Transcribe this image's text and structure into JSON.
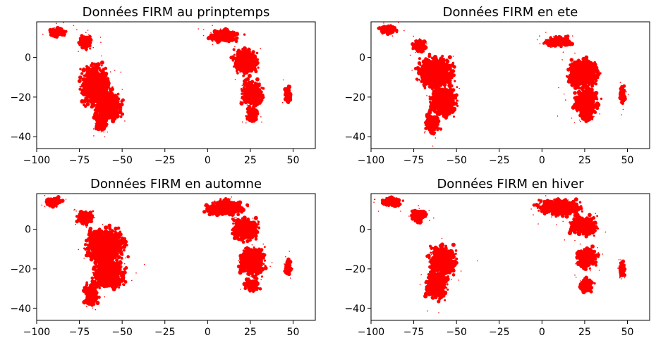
{
  "chart_data": [
    {
      "type": "scatter",
      "title": "Données FIRM au prinptemps",
      "xlabel": "",
      "ylabel": "",
      "xlim": [
        -100,
        63
      ],
      "ylim": [
        -46,
        18
      ],
      "xticks": [
        -100,
        -75,
        -50,
        -25,
        0,
        25,
        50
      ],
      "yticks": [
        -40,
        -20,
        0
      ],
      "marker_color": "#ff0000",
      "regions": [
        {
          "name": "",
          "cx": -66,
          "cy": -14,
          "rx": 10,
          "ry": 13,
          "density": 1.0
        },
        {
          "name": "",
          "cx": -58,
          "cy": -24,
          "rx": 9,
          "ry": 10,
          "density": 0.9
        },
        {
          "name": "",
          "cx": -62,
          "cy": -32,
          "rx": 5,
          "ry": 6,
          "density": 0.6
        },
        {
          "name": "",
          "cx": -72,
          "cy": 8,
          "rx": 5,
          "ry": 4,
          "density": 0.7
        },
        {
          "name": "",
          "cx": -88,
          "cy": 13,
          "rx": 6,
          "ry": 3,
          "density": 0.6
        },
        {
          "name": "",
          "cx": 10,
          "cy": 11,
          "rx": 12,
          "ry": 4,
          "density": 0.6
        },
        {
          "name": "",
          "cx": 22,
          "cy": -2,
          "rx": 9,
          "ry": 8,
          "density": 1.0
        },
        {
          "name": "",
          "cx": 26,
          "cy": -18,
          "rx": 8,
          "ry": 8,
          "density": 0.8
        },
        {
          "name": "",
          "cx": 26,
          "cy": -29,
          "rx": 4,
          "ry": 4,
          "density": 0.6
        },
        {
          "name": "",
          "cx": 47,
          "cy": -19,
          "rx": 2,
          "ry": 5,
          "density": 0.8
        }
      ]
    },
    {
      "type": "scatter",
      "title": "Données FIRM en ete",
      "xlabel": "",
      "ylabel": "",
      "xlim": [
        -100,
        63
      ],
      "ylim": [
        -46,
        18
      ],
      "xticks": [
        -100,
        -75,
        -50,
        -25,
        0,
        25,
        50
      ],
      "yticks": [
        -40,
        -20,
        0
      ],
      "marker_color": "#ff0000",
      "regions": [
        {
          "name": "",
          "cx": -62,
          "cy": -8,
          "rx": 13,
          "ry": 10,
          "density": 1.0
        },
        {
          "name": "",
          "cx": -58,
          "cy": -22,
          "rx": 10,
          "ry": 9,
          "density": 1.0
        },
        {
          "name": "",
          "cx": -64,
          "cy": -33,
          "rx": 5,
          "ry": 6,
          "density": 0.8
        },
        {
          "name": "",
          "cx": -72,
          "cy": 6,
          "rx": 5,
          "ry": 4,
          "density": 0.7
        },
        {
          "name": "",
          "cx": -90,
          "cy": 14,
          "rx": 6,
          "ry": 3,
          "density": 0.6
        },
        {
          "name": "",
          "cx": 10,
          "cy": 8,
          "rx": 10,
          "ry": 3,
          "density": 0.5
        },
        {
          "name": "",
          "cx": 24,
          "cy": -8,
          "rx": 11,
          "ry": 9,
          "density": 1.0
        },
        {
          "name": "",
          "cx": 26,
          "cy": -22,
          "rx": 9,
          "ry": 8,
          "density": 0.9
        },
        {
          "name": "",
          "cx": 26,
          "cy": -30,
          "rx": 4,
          "ry": 3,
          "density": 0.6
        },
        {
          "name": "",
          "cx": 47,
          "cy": -19,
          "rx": 2,
          "ry": 5,
          "density": 0.8
        }
      ]
    },
    {
      "type": "scatter",
      "title": "Données FIRM en automne",
      "xlabel": "",
      "ylabel": "",
      "xlim": [
        -100,
        63
      ],
      "ylim": [
        -46,
        18
      ],
      "xticks": [
        -100,
        -75,
        -50,
        -25,
        0,
        25,
        50
      ],
      "yticks": [
        -40,
        -20,
        0
      ],
      "marker_color": "#ff0000",
      "regions": [
        {
          "name": "",
          "cx": -60,
          "cy": -8,
          "rx": 14,
          "ry": 11,
          "density": 1.0
        },
        {
          "name": "",
          "cx": -58,
          "cy": -22,
          "rx": 11,
          "ry": 10,
          "density": 1.0
        },
        {
          "name": "",
          "cx": -68,
          "cy": -33,
          "rx": 5,
          "ry": 7,
          "density": 0.7
        },
        {
          "name": "",
          "cx": -72,
          "cy": 6,
          "rx": 6,
          "ry": 4,
          "density": 0.7
        },
        {
          "name": "",
          "cx": -90,
          "cy": 14,
          "rx": 6,
          "ry": 3,
          "density": 0.6
        },
        {
          "name": "",
          "cx": 10,
          "cy": 11,
          "rx": 14,
          "ry": 5,
          "density": 0.9
        },
        {
          "name": "",
          "cx": 22,
          "cy": 0,
          "rx": 10,
          "ry": 7,
          "density": 0.9
        },
        {
          "name": "",
          "cx": 26,
          "cy": -16,
          "rx": 9,
          "ry": 9,
          "density": 1.0
        },
        {
          "name": "",
          "cx": 26,
          "cy": -28,
          "rx": 5,
          "ry": 4,
          "density": 0.7
        },
        {
          "name": "",
          "cx": 47,
          "cy": -19,
          "rx": 2,
          "ry": 5,
          "density": 1.0
        }
      ]
    },
    {
      "type": "scatter",
      "title": "Données FIRM en hiver",
      "xlabel": "",
      "ylabel": "",
      "xlim": [
        -100,
        63
      ],
      "ylim": [
        -46,
        18
      ],
      "xticks": [
        -100,
        -75,
        -50,
        -25,
        0,
        25,
        50
      ],
      "yticks": [
        -40,
        -20,
        0
      ],
      "marker_color": "#ff0000",
      "regions": [
        {
          "name": "",
          "cx": -58,
          "cy": -16,
          "rx": 10,
          "ry": 10,
          "density": 0.8
        },
        {
          "name": "",
          "cx": -62,
          "cy": -28,
          "rx": 8,
          "ry": 9,
          "density": 0.8
        },
        {
          "name": "",
          "cx": -72,
          "cy": 7,
          "rx": 6,
          "ry": 4,
          "density": 0.7
        },
        {
          "name": "",
          "cx": -88,
          "cy": 14,
          "rx": 7,
          "ry": 3,
          "density": 0.8
        },
        {
          "name": "",
          "cx": 10,
          "cy": 11,
          "rx": 16,
          "ry": 5,
          "density": 1.0
        },
        {
          "name": "",
          "cx": 24,
          "cy": 2,
          "rx": 10,
          "ry": 6,
          "density": 0.9
        },
        {
          "name": "",
          "cx": 26,
          "cy": -14,
          "rx": 8,
          "ry": 7,
          "density": 0.5
        },
        {
          "name": "",
          "cx": 26,
          "cy": -28,
          "rx": 5,
          "ry": 5,
          "density": 0.4
        },
        {
          "name": "",
          "cx": 47,
          "cy": -20,
          "rx": 2,
          "ry": 5,
          "density": 0.6
        }
      ]
    }
  ]
}
